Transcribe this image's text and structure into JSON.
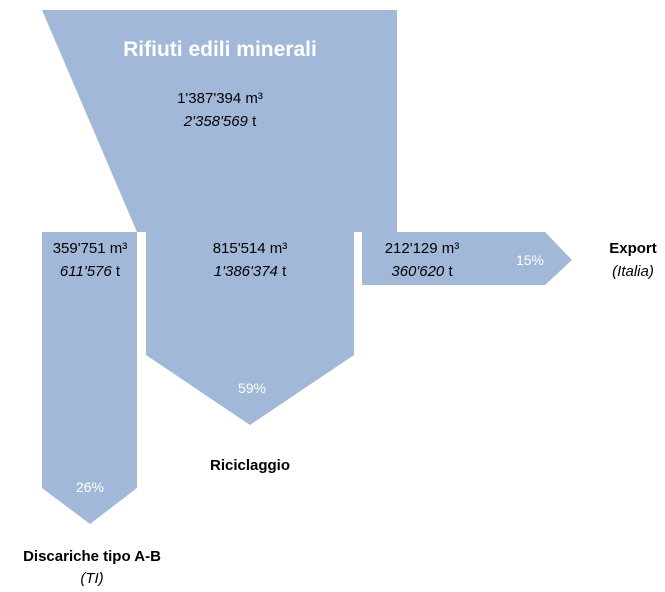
{
  "source": {
    "title": "Rifiuti edili minerali",
    "volume": "1'387'394",
    "volume_unit": "m³",
    "mass": "2'358'569",
    "mass_unit": "t"
  },
  "flows": [
    {
      "volume": "359'751",
      "volume_unit": "m³",
      "mass": "611'576",
      "mass_unit": "t",
      "share": "26%",
      "label": "Discariche tipo A-B",
      "sublabel": "(TI)"
    },
    {
      "volume": "815'514",
      "volume_unit": "m³",
      "mass": "1'386'374",
      "mass_unit": "t",
      "share": "59%",
      "label": "Riciclaggio"
    },
    {
      "volume": "212'129",
      "volume_unit": "m³",
      "mass": "360'620",
      "mass_unit": "t",
      "share": "15%",
      "label": "Export",
      "sublabel": "(Italia)"
    }
  ]
}
